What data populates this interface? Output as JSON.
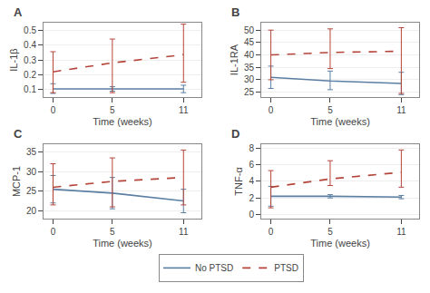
{
  "chart_data": [
    {
      "type": "line",
      "title": "A",
      "xlabel": "Time (weeks)",
      "ylabel": "IL-1β",
      "x": [
        0,
        5,
        11
      ],
      "xlim": [
        -0.8,
        12.5
      ],
      "xticks": [
        0,
        5,
        11
      ],
      "ylim": [
        0.05,
        0.55
      ],
      "yticks": [
        0.1,
        0.2,
        0.3,
        0.4,
        0.5
      ],
      "grid": "y",
      "legend": "bottom",
      "series": [
        {
          "name": "No PTSD",
          "color": "#5b7fa3",
          "line_style": "solid",
          "values": [
            0.105,
            0.105,
            0.105
          ],
          "lower": [
            0.075,
            0.09,
            0.08
          ],
          "upper": [
            0.14,
            0.12,
            0.13
          ]
        },
        {
          "name": "PTSD",
          "color": "#b5453a",
          "line_style": "dashed",
          "values": [
            0.22,
            0.28,
            0.335
          ],
          "lower": [
            0.08,
            0.08,
            0.15
          ],
          "upper": [
            0.355,
            0.44,
            0.54
          ]
        }
      ]
    },
    {
      "type": "line",
      "title": "B",
      "xlabel": "Time (weeks)",
      "ylabel": "IL-1RA",
      "x": [
        0,
        5,
        11
      ],
      "xlim": [
        -0.8,
        12.5
      ],
      "xticks": [
        0,
        5,
        11
      ],
      "ylim": [
        23,
        53
      ],
      "yticks": [
        25,
        30,
        35,
        40,
        45,
        50
      ],
      "grid": "y",
      "legend": "bottom",
      "series": [
        {
          "name": "No PTSD",
          "color": "#5b7fa3",
          "line_style": "solid",
          "values": [
            31.0,
            29.5,
            28.5
          ],
          "lower": [
            26.5,
            26.0,
            24.0
          ],
          "upper": [
            35.5,
            33.5,
            33.0
          ]
        },
        {
          "name": "PTSD",
          "color": "#b5453a",
          "line_style": "dashed",
          "values": [
            40.0,
            41.0,
            41.5
          ],
          "lower": [
            30.0,
            34.5,
            24.5
          ],
          "upper": [
            50.0,
            50.5,
            51.0
          ]
        }
      ]
    },
    {
      "type": "line",
      "title": "C",
      "xlabel": "Time (weeks)",
      "ylabel": "MCP-1",
      "x": [
        0,
        5,
        11
      ],
      "xlim": [
        -0.8,
        12.5
      ],
      "xticks": [
        0,
        5,
        11
      ],
      "ylim": [
        18,
        37
      ],
      "yticks": [
        20,
        25,
        30,
        35
      ],
      "grid": "y",
      "legend": "bottom",
      "series": [
        {
          "name": "No PTSD",
          "color": "#5b7fa3",
          "line_style": "solid",
          "values": [
            25.5,
            24.5,
            22.5
          ],
          "lower": [
            22.0,
            20.5,
            19.5
          ],
          "upper": [
            29.0,
            28.5,
            25.5
          ]
        },
        {
          "name": "PTSD",
          "color": "#b5453a",
          "line_style": "dashed",
          "values": [
            26.0,
            27.5,
            28.5
          ],
          "lower": [
            21.5,
            21.0,
            21.5
          ],
          "upper": [
            32.0,
            33.5,
            35.5
          ]
        }
      ]
    },
    {
      "type": "line",
      "title": "D",
      "xlabel": "Time (weeks)",
      "ylabel": "TNF-α",
      "x": [
        0,
        5,
        11
      ],
      "xlim": [
        -0.8,
        12.5
      ],
      "xticks": [
        0,
        5,
        11
      ],
      "ylim": [
        -0.5,
        8.5
      ],
      "yticks": [
        0,
        2,
        4,
        6,
        8
      ],
      "grid": "y",
      "legend": "bottom",
      "series": [
        {
          "name": "No PTSD",
          "color": "#5b7fa3",
          "line_style": "solid",
          "values": [
            2.2,
            2.2,
            2.1
          ],
          "lower": [
            1.0,
            2.0,
            1.9
          ],
          "upper": [
            3.4,
            2.4,
            2.3
          ]
        },
        {
          "name": "PTSD",
          "color": "#b5453a",
          "line_style": "dashed",
          "values": [
            3.3,
            4.3,
            5.1
          ],
          "lower": [
            0.8,
            3.5,
            3.3
          ],
          "upper": [
            5.3,
            6.5,
            7.8
          ]
        }
      ]
    }
  ]
}
